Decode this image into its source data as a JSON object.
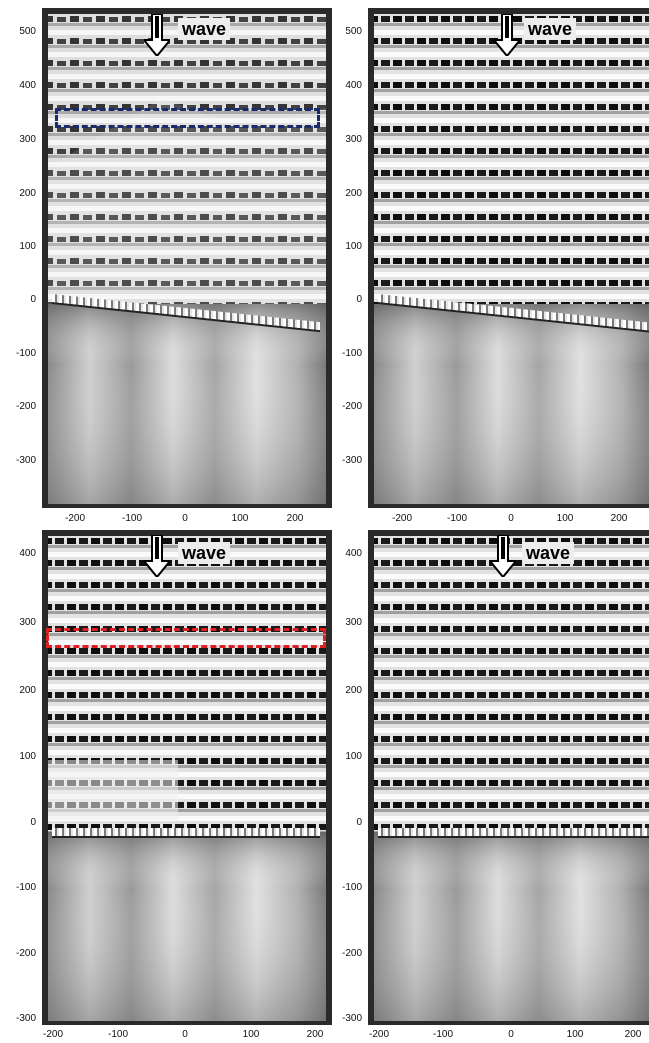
{
  "panels": [
    {
      "wave_label": "wave",
      "y_ticks": [
        "500",
        "400",
        "300",
        "200",
        "100",
        "0",
        "-100",
        "-200",
        "-300"
      ],
      "x_ticks": [
        "-200",
        "-100",
        "0",
        "100",
        "200"
      ],
      "highlight_color": "#1a2a6e"
    },
    {
      "wave_label": "wave",
      "y_ticks": [
        "500",
        "400",
        "300",
        "200",
        "100",
        "0",
        "-100",
        "-200",
        "-300"
      ],
      "x_ticks": [
        "-200",
        "-100",
        "0",
        "100",
        "200"
      ]
    },
    {
      "wave_label": "wave",
      "y_ticks": [
        "400",
        "300",
        "200",
        "100",
        "0",
        "-100",
        "-200",
        "-300"
      ],
      "x_ticks": [
        "-200",
        "-100",
        "0",
        "100",
        "200"
      ],
      "highlight_color": "#e02020"
    },
    {
      "wave_label": "wave",
      "y_ticks": [
        "400",
        "300",
        "200",
        "100",
        "0",
        "-100",
        "-200",
        "-300"
      ],
      "x_ticks": [
        "-200",
        "-100",
        "0",
        "100",
        "200"
      ]
    }
  ],
  "icons": {
    "arrow": "down-arrow-icon"
  }
}
